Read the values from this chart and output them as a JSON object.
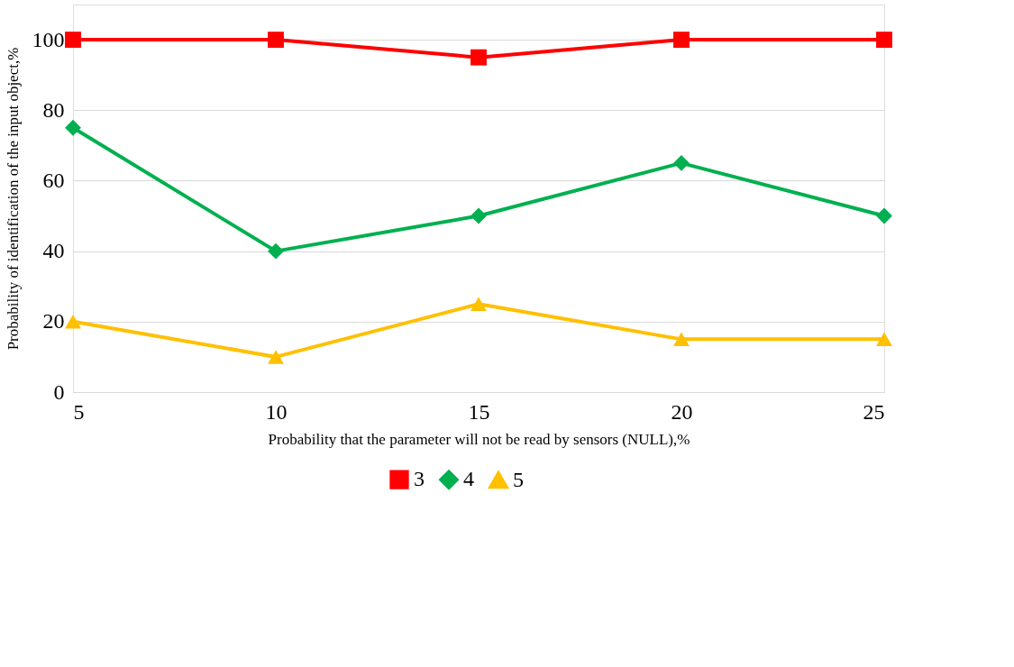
{
  "chart_data": {
    "type": "line",
    "xlabel": "Probability that the parameter will not be read by sensors (NULL),%",
    "ylabel": "Probability of identification of the input object,%",
    "x": [
      5,
      10,
      15,
      20,
      25
    ],
    "series": [
      {
        "name": "3",
        "color": "#ff0000",
        "marker": "square",
        "values": [
          100,
          100,
          95,
          100,
          100
        ]
      },
      {
        "name": "4",
        "color": "#00b050",
        "marker": "diamond",
        "values": [
          75,
          40,
          50,
          65,
          50
        ]
      },
      {
        "name": "5",
        "color": "#ffc000",
        "marker": "triangle",
        "values": [
          20,
          10,
          25,
          15,
          15
        ]
      }
    ],
    "xlim": [
      5,
      25
    ],
    "xticks": [
      5,
      10,
      15,
      20,
      25
    ],
    "ylim": [
      0,
      110
    ],
    "yticks": [
      0,
      20,
      40,
      60,
      80,
      100
    ],
    "grid": "y",
    "legend": "bottom",
    "line_style": "solid"
  }
}
